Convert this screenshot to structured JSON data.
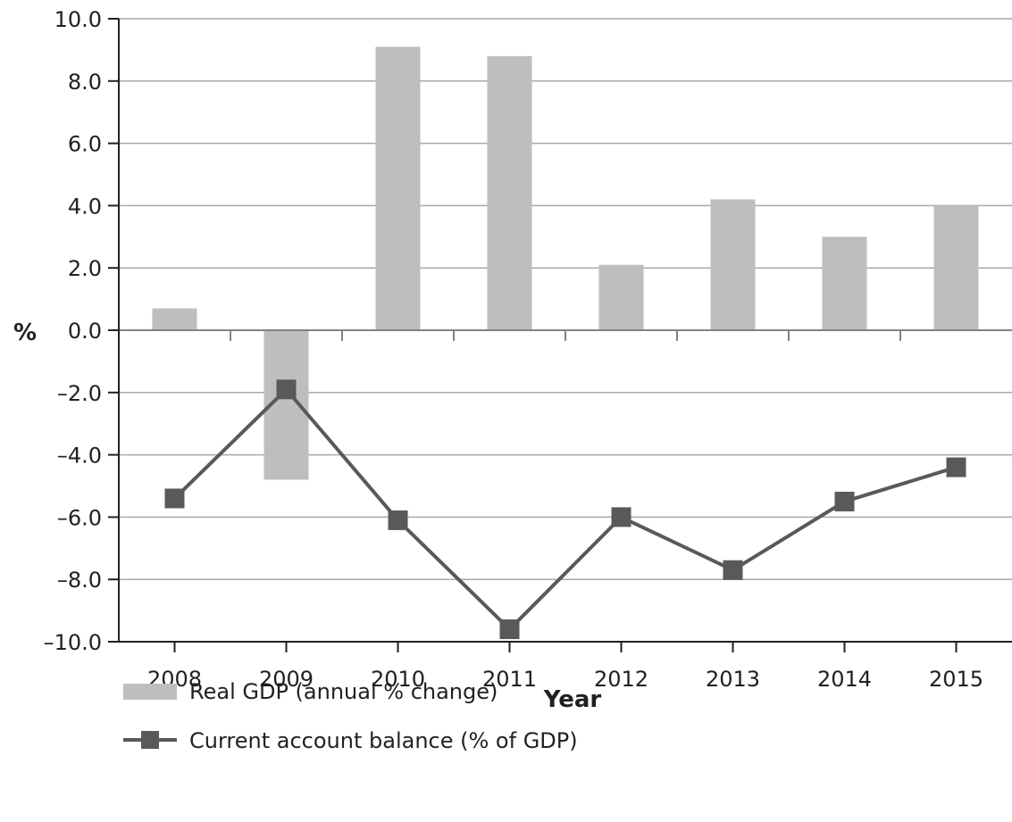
{
  "chart_data": {
    "type": "bar",
    "categories": [
      "2008",
      "2009",
      "2010",
      "2011",
      "2012",
      "2013",
      "2014",
      "2015"
    ],
    "series": [
      {
        "name": "Real GDP (annual % change)",
        "type": "bar",
        "color": "#bcbec0",
        "values": [
          0.7,
          -4.8,
          9.1,
          8.8,
          2.1,
          4.2,
          3.0,
          4.0
        ]
      },
      {
        "name": "Current account balance (% of GDP)",
        "type": "line",
        "marker": "square",
        "color": "#58595b",
        "values": [
          -5.4,
          -1.9,
          -6.1,
          -9.6,
          -6.0,
          -7.7,
          -5.5,
          -4.4
        ]
      }
    ],
    "xlabel": "Year",
    "ylabel": "%",
    "ylim": [
      -10.0,
      10.0
    ],
    "yticks": [
      "10.0",
      "8.0",
      "6.0",
      "4.0",
      "2.0",
      "0.0",
      "–2.0",
      "–4.0",
      "–6.0",
      "–8.0",
      "–10.0"
    ],
    "grid": true,
    "legend_position": "bottom-left"
  }
}
